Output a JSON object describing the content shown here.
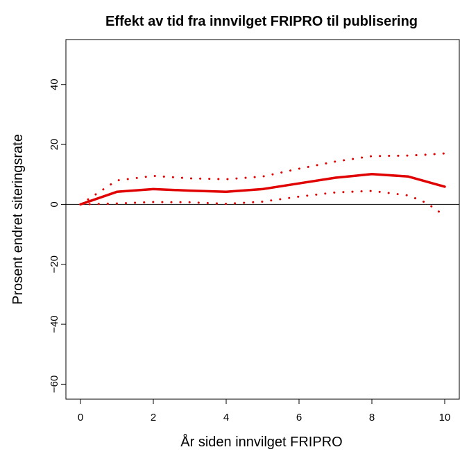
{
  "chart_data": {
    "type": "line",
    "title": "Effekt av tid fra innvilget FRIPRO til publisering",
    "xlabel": "År siden innvilget FRIPRO",
    "ylabel": "Prosent endret siteringsrate",
    "xlim": [
      -0.4,
      10.4
    ],
    "ylim": [
      -65,
      55
    ],
    "x_ticks": [
      0,
      2,
      4,
      6,
      8,
      10
    ],
    "y_ticks": [
      -60,
      -40,
      -20,
      0,
      20,
      40
    ],
    "y_tick_labels": [
      "−60",
      "−40",
      "−20",
      "0",
      "20",
      "40"
    ],
    "grid": false,
    "reference_line_y": 0,
    "colors": {
      "estimate": "#e00000",
      "bounds": "#e00000",
      "reference": "#000000"
    },
    "series": [
      {
        "style": "solid",
        "x": [
          0,
          1,
          2,
          3,
          4,
          5,
          6,
          7,
          8,
          9,
          10
        ],
        "y": [
          0,
          4.2,
          5.1,
          4.6,
          4.2,
          5.1,
          7.0,
          8.9,
          10.1,
          9.3,
          5.9
        ]
      },
      {
        "style": "dotted",
        "x": [
          0,
          1,
          2,
          3,
          4,
          5,
          6,
          7,
          8,
          9,
          9.5,
          10
        ],
        "y": [
          0,
          8.0,
          9.5,
          8.7,
          8.4,
          9.3,
          11.9,
          14.3,
          16.1,
          16.3,
          16.6,
          17.0
        ]
      },
      {
        "style": "dotted",
        "x": [
          0,
          1,
          2,
          3,
          4,
          5,
          6,
          7,
          8,
          9,
          9.5,
          10
        ],
        "y": [
          0,
          0.3,
          0.8,
          0.7,
          0.2,
          0.9,
          2.6,
          4.0,
          4.5,
          3.0,
          0.5,
          -3.8
        ]
      }
    ]
  }
}
